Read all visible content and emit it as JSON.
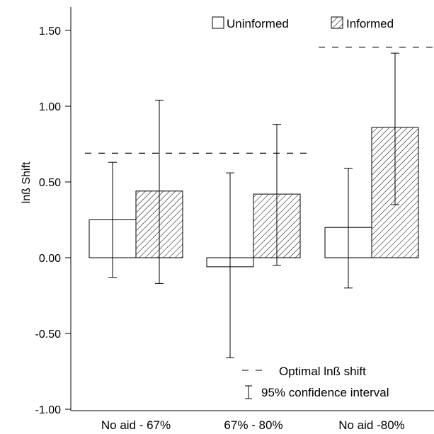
{
  "chart_data": {
    "type": "bar",
    "ylabel": "lnß Shift",
    "ylim": [
      -1.0,
      1.5
    ],
    "yticks": [
      "1.50",
      "1.00",
      "0.50",
      "0.00",
      "-0.50",
      "-1.00"
    ],
    "yticks_values": [
      1.5,
      1.0,
      0.5,
      0.0,
      -0.5,
      -1.0
    ],
    "categories": [
      "No aid - 67%",
      "67% - 80%",
      "No aid -80%"
    ],
    "series": [
      {
        "name": "Uninformed",
        "fill": "none",
        "values": [
          0.25,
          -0.06,
          0.2
        ],
        "ci_low": [
          -0.13,
          -0.66,
          -0.2
        ],
        "ci_high": [
          0.63,
          0.56,
          0.59
        ]
      },
      {
        "name": "Informed",
        "fill": "hatched",
        "values": [
          0.44,
          0.42,
          0.86
        ],
        "ci_low": [
          -0.17,
          -0.05,
          0.35
        ],
        "ci_high": [
          1.04,
          0.88,
          1.35
        ]
      }
    ],
    "optimal_shift": [
      0.69,
      0.69,
      1.39
    ],
    "legend": {
      "uninformed": "Uninformed",
      "informed": "Informed",
      "optimal": "Optimal lnß shift",
      "ci": "95% confidence interval"
    },
    "grid": false,
    "legend_placement": "top-right"
  }
}
